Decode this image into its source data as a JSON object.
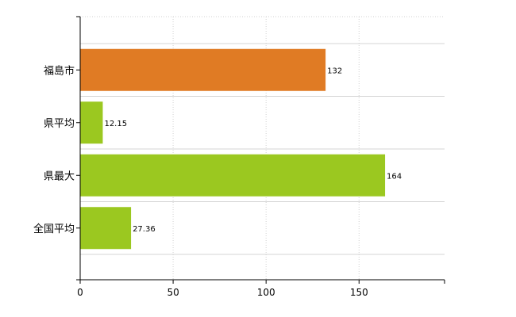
{
  "chart_data": {
    "type": "bar",
    "orientation": "horizontal",
    "categories": [
      "福島市",
      "県平均",
      "県最大",
      "全国平均"
    ],
    "values": [
      132,
      12.15,
      164,
      27.36
    ],
    "value_labels": [
      "132",
      "12.15",
      "164",
      "27.36"
    ],
    "bar_colors": [
      "#e07b24",
      "#9bc820",
      "#9bc820",
      "#9bc820"
    ],
    "xlim": [
      0,
      196
    ],
    "xticks": [
      0,
      50,
      100,
      150
    ],
    "xtick_labels": [
      "0",
      "50",
      "100",
      "150"
    ],
    "grid": true,
    "legend": "none",
    "title": "",
    "xlabel": "",
    "ylabel": ""
  }
}
